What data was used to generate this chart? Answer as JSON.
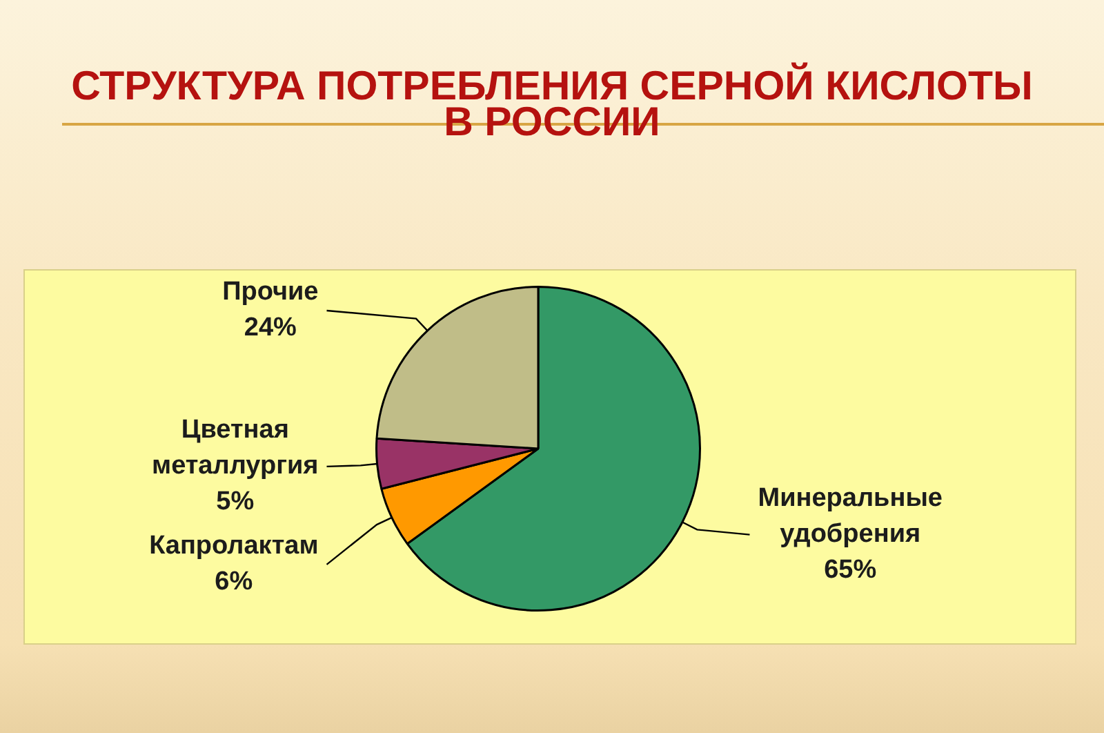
{
  "chart_data": {
    "type": "pie",
    "title": "СТРУКТУРА ПОТРЕБЛЕНИЯ СЕРНОЙ КИСЛОТЫ В РОССИИ",
    "categories": [
      "Минеральные удобрения",
      "Капролактам",
      "Цветная металлургия",
      "Прочие"
    ],
    "values": [
      65,
      6,
      5,
      24
    ],
    "colors": [
      "#339966",
      "#ff9900",
      "#993366",
      "#c0bd88"
    ],
    "value_labels": [
      "65%",
      "6%",
      "5%",
      "24%"
    ],
    "legend": false
  }
}
